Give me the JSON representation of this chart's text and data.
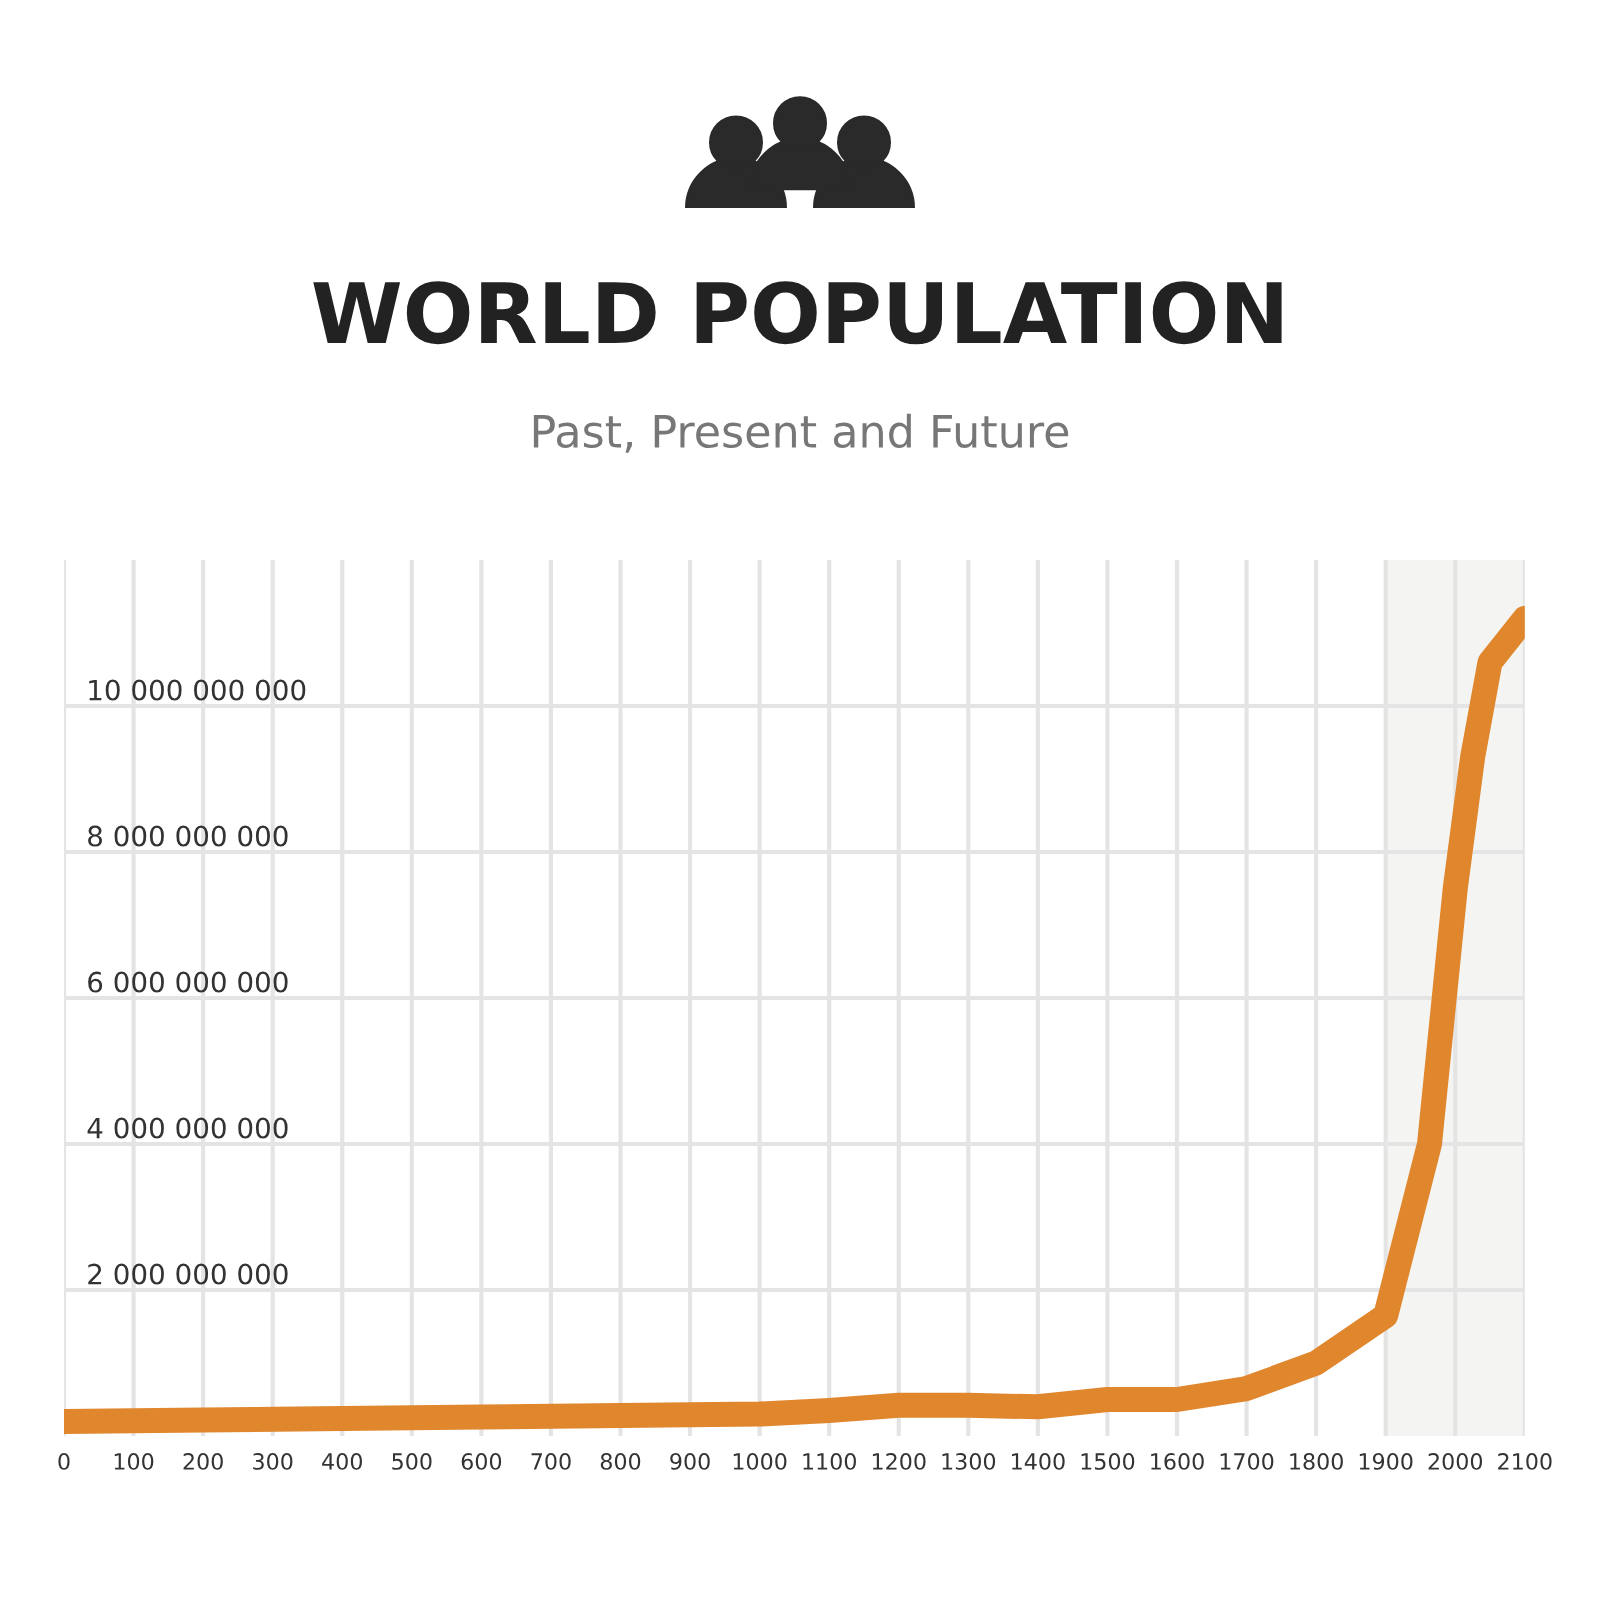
{
  "chart_data": {
    "type": "line",
    "title": "WORLD POPULATION",
    "subtitle": "Past, Present and Future",
    "x": [
      0,
      200,
      400,
      600,
      800,
      1000,
      1100,
      1200,
      1300,
      1400,
      1500,
      1600,
      1700,
      1800,
      1900,
      1963,
      2000,
      2025,
      2050,
      2100
    ],
    "series": [
      {
        "color": "#e0862c",
        "values": [
          200000000,
          220000000,
          240000000,
          260000000,
          280000000,
          300000000,
          350000000,
          420000000,
          420000000,
          400000000,
          500000000,
          500000000,
          650000000,
          1000000000,
          1650000000,
          4000000000,
          7500000000,
          9300000000,
          10600000000,
          11200000000
        ]
      }
    ],
    "xlim": [
      0,
      2100
    ],
    "ylim": [
      0,
      12000000000
    ],
    "xticks": [
      0,
      100,
      200,
      300,
      400,
      500,
      600,
      700,
      800,
      900,
      1000,
      1100,
      1200,
      1300,
      1400,
      1500,
      1600,
      1700,
      1800,
      1900,
      2000,
      2100
    ],
    "yticks": [
      {
        "value": 2000000000,
        "label": "2 000 000 000"
      },
      {
        "value": 4000000000,
        "label": "4 000 000 000"
      },
      {
        "value": 6000000000,
        "label": "6 000 000 000"
      },
      {
        "value": 8000000000,
        "label": "8 000 000 000"
      },
      {
        "value": 10000000000,
        "label": "10 000 000 000"
      }
    ],
    "bands": [
      {
        "axis": "x",
        "from": 1900,
        "to": 2100,
        "color": "#f4f4f2"
      }
    ],
    "grid": true,
    "line_style": "solid"
  }
}
